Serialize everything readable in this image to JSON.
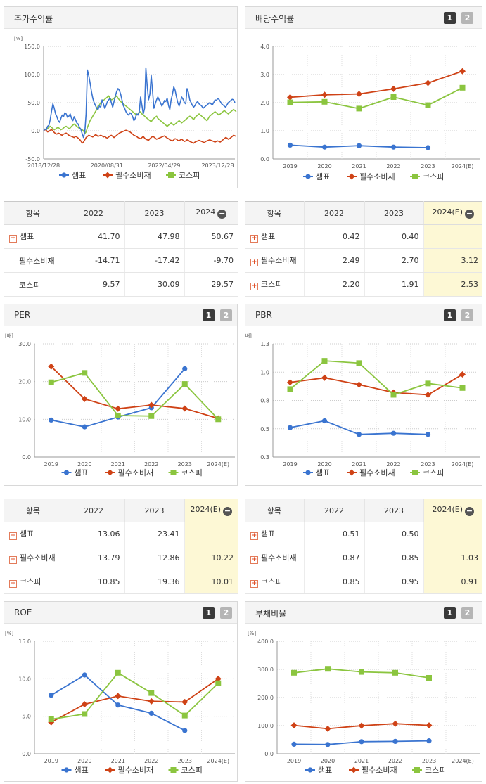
{
  "colors": {
    "sample": "#3a74d0",
    "sector": "#cf4216",
    "kospi": "#8bc53f"
  },
  "legend": [
    "샘표",
    "필수소비재",
    "코스피"
  ],
  "panels": {
    "stock": {
      "title": "주가수익률"
    },
    "div": {
      "title": "배당수익률",
      "tab1": "1",
      "tab2": "2"
    },
    "per": {
      "title": "PER",
      "tab1": "1",
      "tab2": "2"
    },
    "pbr": {
      "title": "PBR",
      "tab1": "1",
      "tab2": "2"
    },
    "roe": {
      "title": "ROE",
      "tab1": "1",
      "tab2": "2"
    },
    "debt": {
      "title": "부채비율",
      "tab1": "1",
      "tab2": "2"
    }
  },
  "tables": {
    "stock": {
      "header": [
        "항목",
        "2022",
        "2023",
        "2024"
      ],
      "rows": [
        {
          "name": "샘표",
          "expand": true,
          "v": [
            "41.70",
            "47.98",
            "50.67"
          ]
        },
        {
          "name": "필수소비재",
          "expand": false,
          "v": [
            "-14.71",
            "-17.42",
            "-9.70"
          ]
        },
        {
          "name": "코스피",
          "expand": false,
          "v": [
            "9.57",
            "30.09",
            "29.57"
          ]
        }
      ]
    },
    "div": {
      "header": [
        "항목",
        "2022",
        "2023",
        "2024(E)"
      ],
      "rows": [
        {
          "name": "샘표",
          "expand": true,
          "v": [
            "0.42",
            "0.40",
            ""
          ]
        },
        {
          "name": "필수소비재",
          "expand": true,
          "v": [
            "2.49",
            "2.70",
            "3.12"
          ]
        },
        {
          "name": "코스피",
          "expand": true,
          "v": [
            "2.20",
            "1.91",
            "2.53"
          ]
        }
      ]
    },
    "per": {
      "header": [
        "항목",
        "2022",
        "2023",
        "2024(E)"
      ],
      "rows": [
        {
          "name": "샘표",
          "expand": true,
          "v": [
            "13.06",
            "23.41",
            ""
          ]
        },
        {
          "name": "필수소비재",
          "expand": true,
          "v": [
            "13.79",
            "12.86",
            "10.22"
          ]
        },
        {
          "name": "코스피",
          "expand": true,
          "v": [
            "10.85",
            "19.36",
            "10.01"
          ]
        }
      ]
    },
    "pbr": {
      "header": [
        "항목",
        "2022",
        "2023",
        "2024(E)"
      ],
      "rows": [
        {
          "name": "샘표",
          "expand": true,
          "v": [
            "0.51",
            "0.50",
            ""
          ]
        },
        {
          "name": "필수소비재",
          "expand": true,
          "v": [
            "0.87",
            "0.85",
            "1.03"
          ]
        },
        {
          "name": "코스피",
          "expand": true,
          "v": [
            "0.85",
            "0.95",
            "0.91"
          ]
        }
      ]
    }
  },
  "chart_data": [
    {
      "id": "stock",
      "type": "line",
      "unit": "[%]",
      "ylim": [
        -50,
        150
      ],
      "yticks": [
        "150.0",
        "100.0",
        "50.0",
        "0.0",
        "-50.0"
      ],
      "xticks": [
        "2018/12/28",
        "2020/08/31",
        "2022/04/29",
        "2023/12/28"
      ],
      "series": [
        {
          "name": "샘표",
          "values": [
            0,
            3,
            2,
            8,
            10,
            20,
            35,
            48,
            40,
            30,
            25,
            18,
            15,
            22,
            28,
            25,
            32,
            30,
            24,
            26,
            30,
            22,
            18,
            25,
            20,
            14,
            12,
            6,
            3,
            -5,
            -12,
            -2,
            30,
            108,
            98,
            85,
            70,
            58,
            50,
            45,
            40,
            38,
            44,
            42,
            55,
            48,
            40,
            45,
            52,
            55,
            58,
            50,
            42,
            52,
            62,
            70,
            75,
            72,
            65,
            55,
            45,
            40,
            34,
            30,
            28,
            32,
            30,
            25,
            18,
            22,
            30,
            28,
            34,
            60,
            45,
            30,
            40,
            112,
            80,
            55,
            65,
            98,
            70,
            40,
            48,
            55,
            60,
            55,
            50,
            44,
            48,
            54,
            52,
            58,
            45,
            38,
            55,
            65,
            78,
            72,
            60,
            50,
            44,
            52,
            60,
            56,
            50,
            48,
            75,
            68,
            55,
            50,
            45,
            42,
            45,
            50,
            52,
            48,
            46,
            44,
            40,
            42,
            44,
            46,
            48,
            50,
            48,
            46,
            50,
            55,
            54,
            57,
            56,
            52,
            48,
            46,
            44,
            42,
            46,
            50,
            52,
            54,
            56,
            55,
            50
          ]
        },
        {
          "name": "필수소비재",
          "values": [
            0,
            2,
            1,
            -2,
            -1,
            1,
            2,
            0,
            -3,
            -5,
            -6,
            -4,
            -5,
            -7,
            -8,
            -6,
            -5,
            -4,
            -6,
            -8,
            -9,
            -10,
            -11,
            -12,
            -10,
            -11,
            -13,
            -15,
            -18,
            -22,
            -20,
            -16,
            -12,
            -10,
            -8,
            -9,
            -10,
            -11,
            -9,
            -7,
            -8,
            -10,
            -9,
            -8,
            -9,
            -11,
            -10,
            -12,
            -13,
            -11,
            -9,
            -8,
            -10,
            -12,
            -10,
            -8,
            -6,
            -4,
            -3,
            -2,
            -1,
            0,
            1,
            0,
            -1,
            -2,
            -4,
            -6,
            -8,
            -9,
            -10,
            -12,
            -13,
            -14,
            -12,
            -10,
            -13,
            -15,
            -16,
            -17,
            -14,
            -12,
            -10,
            -11,
            -13,
            -15,
            -14,
            -13,
            -12,
            -11,
            -10,
            -9,
            -11,
            -13,
            -14,
            -16,
            -17,
            -18,
            -16,
            -14,
            -15,
            -17,
            -18,
            -16,
            -15,
            -17,
            -19,
            -18,
            -16,
            -17,
            -19,
            -20,
            -21,
            -22,
            -20,
            -19,
            -18,
            -17,
            -18,
            -19,
            -20,
            -21,
            -19,
            -18,
            -17,
            -16,
            -17,
            -18,
            -19,
            -20,
            -19,
            -18,
            -19,
            -20,
            -18,
            -16,
            -14,
            -12,
            -13,
            -15,
            -14,
            -12,
            -10,
            -8,
            -9,
            -10
          ]
        },
        {
          "name": "코스피",
          "values": [
            0,
            3,
            2,
            4,
            6,
            8,
            6,
            4,
            2,
            3,
            5,
            6,
            4,
            2,
            3,
            5,
            7,
            8,
            6,
            4,
            5,
            8,
            10,
            12,
            10,
            8,
            6,
            4,
            3,
            2,
            0,
            -5,
            -2,
            6,
            12,
            18,
            22,
            26,
            30,
            34,
            38,
            44,
            46,
            50,
            52,
            54,
            56,
            58,
            60,
            62,
            58,
            55,
            56,
            58,
            60,
            62,
            58,
            55,
            52,
            50,
            48,
            46,
            44,
            42,
            40,
            38,
            36,
            34,
            32,
            30,
            28,
            30,
            32,
            34,
            30,
            28,
            26,
            24,
            22,
            20,
            18,
            16,
            20,
            22,
            24,
            26,
            22,
            20,
            18,
            16,
            14,
            12,
            10,
            8,
            10,
            12,
            14,
            12,
            10,
            12,
            14,
            16,
            18,
            16,
            14,
            16,
            18,
            20,
            22,
            24,
            26,
            25,
            22,
            20,
            24,
            26,
            28,
            30,
            28,
            26,
            24,
            22,
            20,
            18,
            22,
            26,
            28,
            30,
            32,
            34,
            32,
            30,
            28,
            30,
            32,
            34,
            36,
            34,
            32,
            30,
            32,
            34,
            36,
            38,
            36,
            34
          ]
        }
      ]
    },
    {
      "id": "div",
      "type": "line",
      "ylim": [
        0,
        4
      ],
      "yticks": [
        "4.0",
        "3.0",
        "2.0",
        "1.0",
        "0.0"
      ],
      "categories": [
        "2019",
        "2020",
        "2021",
        "2022",
        "2023",
        "2024(E)"
      ],
      "series": [
        {
          "name": "샘표",
          "values": [
            0.49,
            0.42,
            0.47,
            0.42,
            0.4,
            null
          ]
        },
        {
          "name": "필수소비재",
          "values": [
            2.19,
            2.28,
            2.31,
            2.49,
            2.7,
            3.12
          ]
        },
        {
          "name": "코스피",
          "values": [
            2.01,
            2.03,
            1.79,
            2.2,
            1.91,
            2.53
          ]
        }
      ]
    },
    {
      "id": "per",
      "type": "line",
      "unit": "[배]",
      "ylim": [
        0,
        30
      ],
      "yticks": [
        "30.0",
        "20.0",
        "10.0",
        "0.0"
      ],
      "categories": [
        "2019",
        "2020",
        "2021",
        "2022",
        "2023",
        "2024(E)"
      ],
      "series": [
        {
          "name": "샘표",
          "values": [
            9.8,
            8.0,
            10.6,
            13.06,
            23.41,
            null
          ]
        },
        {
          "name": "필수소비재",
          "values": [
            24.0,
            15.4,
            12.8,
            13.79,
            12.86,
            10.22
          ]
        },
        {
          "name": "코스피",
          "values": [
            19.8,
            22.3,
            11.0,
            10.85,
            19.36,
            10.01
          ]
        }
      ]
    },
    {
      "id": "pbr",
      "type": "line",
      "unit": "[배]",
      "ylim": [
        0.3,
        1.3
      ],
      "yticks": [
        "1.3",
        "1.0",
        "0.8",
        "0.5",
        "0.3"
      ],
      "categories": [
        "2019",
        "2020",
        "2021",
        "2022",
        "2023",
        "2024(E)"
      ],
      "series": [
        {
          "name": "샘표",
          "values": [
            0.56,
            0.62,
            0.5,
            0.51,
            0.5,
            null
          ]
        },
        {
          "name": "필수소비재",
          "values": [
            0.96,
            1.0,
            0.94,
            0.87,
            0.85,
            1.03
          ]
        },
        {
          "name": "코스피",
          "values": [
            0.9,
            1.15,
            1.13,
            0.85,
            0.95,
            0.91
          ]
        }
      ]
    },
    {
      "id": "roe",
      "type": "line",
      "unit": "[%]",
      "ylim": [
        0,
        15
      ],
      "yticks": [
        "15.0",
        "10.0",
        "5.0",
        "0.0"
      ],
      "categories": [
        "2019",
        "2020",
        "2021",
        "2022",
        "2023",
        "2024(E)"
      ],
      "series": [
        {
          "name": "샘표",
          "values": [
            7.8,
            10.5,
            6.5,
            5.4,
            3.1,
            null
          ]
        },
        {
          "name": "필수소비재",
          "values": [
            4.2,
            6.6,
            7.7,
            7.0,
            6.9,
            10.0
          ]
        },
        {
          "name": "코스피",
          "values": [
            4.6,
            5.3,
            10.8,
            8.1,
            5.1,
            9.4
          ]
        }
      ]
    },
    {
      "id": "debt",
      "type": "line",
      "unit": "[%]",
      "ylim": [
        0,
        400
      ],
      "yticks": [
        "400.0",
        "300.0",
        "200.0",
        "100.0",
        "0.0"
      ],
      "categories": [
        "2019",
        "2020",
        "2021",
        "2022",
        "2023",
        "2024(E)"
      ],
      "series": [
        {
          "name": "샘표",
          "values": [
            34,
            33,
            43,
            44,
            46,
            null
          ]
        },
        {
          "name": "필수소비재",
          "values": [
            101,
            89,
            100,
            107,
            101,
            null
          ]
        },
        {
          "name": "코스피",
          "values": [
            288,
            302,
            291,
            288,
            270,
            null
          ]
        }
      ]
    }
  ]
}
